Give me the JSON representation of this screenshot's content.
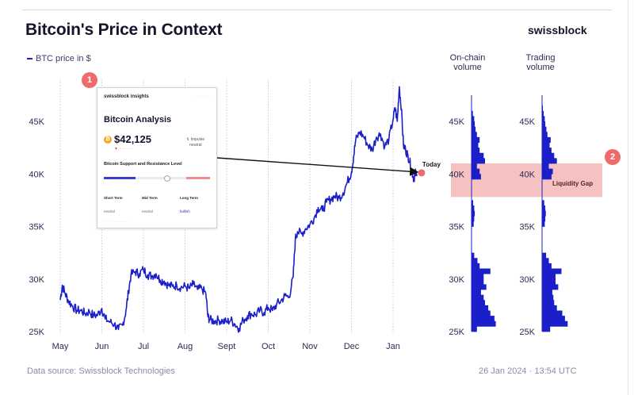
{
  "header": {
    "title": "Bitcoin's Price in Context",
    "brand": "swissblock",
    "legend": "BTC price in $"
  },
  "columns": {
    "onchain": [
      "On-chain",
      "volume"
    ],
    "trading": [
      "Trading",
      "volume"
    ]
  },
  "badges": {
    "one": "1",
    "two": "2"
  },
  "annotations": {
    "today": "Today",
    "liquidity_gap": "Liquidity Gap"
  },
  "footer": {
    "source": "Data source: Swissblock Technologies",
    "timestamp": "26 Jan 2024 · 13:54 UTC"
  },
  "card": {
    "brand": "swissblock insights",
    "title": "Bitcoin Analysis",
    "price": "$42,125",
    "impulse": [
      "Impulse",
      "neutral"
    ],
    "support_label": "Bitcoin Support and Resistance Level",
    "terms": [
      {
        "label": "Short Term",
        "value": "neutral"
      },
      {
        "label": "Mid Term",
        "value": "neutral"
      },
      {
        "label": "Long Term",
        "value": "bullish"
      }
    ]
  },
  "colors": {
    "series": "#1b1fc9",
    "accent": "#ef6b6b",
    "gap_band": "#f6c1c1"
  },
  "chart_data": [
    {
      "type": "line",
      "title": "Bitcoin's Price in Context",
      "series_name": "BTC price in $",
      "x_ticks": [
        "May",
        "Jun",
        "Jul",
        "Aug",
        "Sept",
        "Oct",
        "Nov",
        "Dec",
        "Jan"
      ],
      "y_ticks": [
        {
          "label": "25K",
          "value": 25000
        },
        {
          "label": "30K",
          "value": 30000
        },
        {
          "label": "35K",
          "value": 35000
        },
        {
          "label": "40K",
          "value": 40000
        },
        {
          "label": "45K",
          "value": 45000
        }
      ],
      "ylim": [
        25000,
        48500
      ],
      "grid": "vertical-dotted",
      "x_unit": "months since May 1, 2023",
      "points": [
        [
          0.0,
          28000
        ],
        [
          0.05,
          29400
        ],
        [
          0.12,
          28600
        ],
        [
          0.2,
          27900
        ],
        [
          0.3,
          27400
        ],
        [
          0.4,
          27000
        ],
        [
          0.5,
          27000
        ],
        [
          0.6,
          26700
        ],
        [
          0.7,
          26900
        ],
        [
          0.8,
          26500
        ],
        [
          0.9,
          26600
        ],
        [
          1.0,
          27200
        ],
        [
          1.08,
          26200
        ],
        [
          1.2,
          25900
        ],
        [
          1.3,
          25700
        ],
        [
          1.4,
          25200
        ],
        [
          1.5,
          25600
        ],
        [
          1.58,
          27000
        ],
        [
          1.64,
          28800
        ],
        [
          1.7,
          30400
        ],
        [
          1.8,
          30700
        ],
        [
          1.9,
          30500
        ],
        [
          2.0,
          30900
        ],
        [
          2.1,
          30400
        ],
        [
          2.2,
          30300
        ],
        [
          2.3,
          30500
        ],
        [
          2.4,
          29900
        ],
        [
          2.5,
          29800
        ],
        [
          2.6,
          29400
        ],
        [
          2.7,
          29300
        ],
        [
          2.8,
          29400
        ],
        [
          2.9,
          29200
        ],
        [
          3.0,
          29300
        ],
        [
          3.1,
          29100
        ],
        [
          3.2,
          29500
        ],
        [
          3.3,
          29000
        ],
        [
          3.4,
          29100
        ],
        [
          3.5,
          28600
        ],
        [
          3.55,
          26400
        ],
        [
          3.6,
          26100
        ],
        [
          3.7,
          26000
        ],
        [
          3.8,
          26100
        ],
        [
          3.9,
          26000
        ],
        [
          4.0,
          25900
        ],
        [
          4.1,
          26100
        ],
        [
          4.2,
          25700
        ],
        [
          4.3,
          25300
        ],
        [
          4.4,
          26100
        ],
        [
          4.5,
          26500
        ],
        [
          4.6,
          26700
        ],
        [
          4.7,
          26600
        ],
        [
          4.8,
          27000
        ],
        [
          4.9,
          26800
        ],
        [
          5.0,
          27300
        ],
        [
          5.1,
          27000
        ],
        [
          5.2,
          27600
        ],
        [
          5.3,
          27900
        ],
        [
          5.4,
          28400
        ],
        [
          5.5,
          28300
        ],
        [
          5.6,
          30200
        ],
        [
          5.65,
          33800
        ],
        [
          5.7,
          34500
        ],
        [
          5.8,
          34300
        ],
        [
          5.9,
          34800
        ],
        [
          6.0,
          35200
        ],
        [
          6.1,
          35800
        ],
        [
          6.2,
          36800
        ],
        [
          6.3,
          36500
        ],
        [
          6.4,
          37300
        ],
        [
          6.5,
          37600
        ],
        [
          6.6,
          37900
        ],
        [
          6.7,
          37700
        ],
        [
          6.8,
          38200
        ],
        [
          6.9,
          39200
        ],
        [
          7.0,
          40200
        ],
        [
          7.05,
          41600
        ],
        [
          7.1,
          43200
        ],
        [
          7.2,
          44000
        ],
        [
          7.3,
          43500
        ],
        [
          7.4,
          42700
        ],
        [
          7.5,
          42300
        ],
        [
          7.6,
          43500
        ],
        [
          7.7,
          43800
        ],
        [
          7.8,
          42600
        ],
        [
          7.9,
          43300
        ],
        [
          8.0,
          45200
        ],
        [
          8.05,
          46300
        ],
        [
          8.1,
          45000
        ],
        [
          8.15,
          48300
        ],
        [
          8.2,
          46200
        ],
        [
          8.25,
          42700
        ],
        [
          8.3,
          42300
        ],
        [
          8.35,
          41800
        ],
        [
          8.4,
          41200
        ],
        [
          8.45,
          40300
        ],
        [
          8.5,
          39500
        ],
        [
          8.53,
          40100
        ],
        [
          8.57,
          39800
        ]
      ]
    },
    {
      "type": "bar",
      "title": "On-chain volume",
      "orientation": "horizontal",
      "y_ticks": [
        "25K",
        "30K",
        "35K",
        "40K",
        "45K"
      ],
      "price_levels": [
        25000,
        25500,
        26000,
        26500,
        27000,
        27500,
        28000,
        28500,
        29000,
        29500,
        30000,
        30500,
        31000,
        31500,
        32000,
        32500,
        33000,
        33500,
        34000,
        34500,
        35000,
        35500,
        36000,
        36500,
        37000,
        37500,
        38000,
        38500,
        39000,
        39500,
        40000,
        40500,
        41000,
        41500,
        42000,
        42500,
        43000,
        43500,
        44000,
        44500,
        45000,
        45500,
        46000,
        46500,
        47000,
        47500
      ],
      "values": [
        0.2,
        0.9,
        0.85,
        0.7,
        0.62,
        0.5,
        0.45,
        0.35,
        0.55,
        0.45,
        0.45,
        0.7,
        0.3,
        0.22,
        0.1,
        0,
        0,
        0,
        0,
        0,
        0.08,
        0.1,
        0.12,
        0.1,
        0.06,
        0,
        0,
        0,
        0,
        0.35,
        0.3,
        0.2,
        0.5,
        0.45,
        0.3,
        0.25,
        0.3,
        0.2,
        0.15,
        0.12,
        0.1,
        0.05,
        0,
        0,
        0,
        0
      ]
    },
    {
      "type": "bar",
      "title": "Trading volume",
      "orientation": "horizontal",
      "y_ticks": [
        "25K",
        "30K",
        "35K",
        "40K",
        "45K"
      ],
      "price_levels": [
        25000,
        25500,
        26000,
        26500,
        27000,
        27500,
        28000,
        28500,
        29000,
        29500,
        30000,
        30500,
        31000,
        31500,
        32000,
        32500,
        33000,
        33500,
        34000,
        34500,
        35000,
        35500,
        36000,
        36500,
        37000,
        37500,
        38000,
        38500,
        39000,
        39500,
        40000,
        40500,
        41000,
        41500,
        42000,
        42500,
        43000,
        43500,
        44000,
        44500,
        45000,
        45500,
        46000,
        46500,
        47000,
        47500
      ],
      "values": [
        0.3,
        0.95,
        0.85,
        0.75,
        0.55,
        0.45,
        0.42,
        0.38,
        0.6,
        0.5,
        0.5,
        0.72,
        0.35,
        0.25,
        0.15,
        0,
        0,
        0,
        0,
        0,
        0.1,
        0.12,
        0.14,
        0.12,
        0.08,
        0,
        0,
        0,
        0,
        0.35,
        0.4,
        0.25,
        0.55,
        0.45,
        0.35,
        0.28,
        0.32,
        0.2,
        0.16,
        0.12,
        0.1,
        0.06,
        0.03,
        0,
        0,
        0
      ]
    }
  ]
}
